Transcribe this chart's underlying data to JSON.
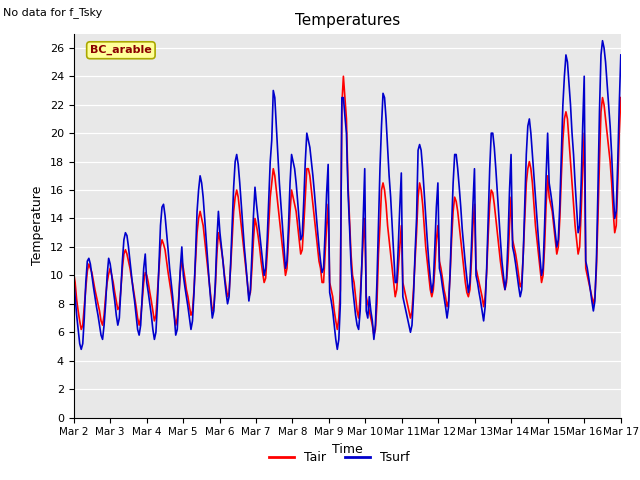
{
  "title": "Temperatures",
  "xlabel": "Time",
  "ylabel": "Temperature",
  "note": "No data for f_Tsky",
  "legend_label": "BC_arable",
  "ylim": [
    0,
    27
  ],
  "yticks": [
    0,
    2,
    4,
    6,
    8,
    10,
    12,
    14,
    16,
    18,
    20,
    22,
    24,
    26
  ],
  "xtick_labels": [
    "Mar 2",
    "Mar 3",
    "Mar 4",
    "Mar 5",
    "Mar 6",
    "Mar 7",
    "Mar 8",
    "Mar 9",
    "Mar 10",
    "Mar 11",
    "Mar 12",
    "Mar 13",
    "Mar 14",
    "Mar 15",
    "Mar 16",
    "Mar 17"
  ],
  "bg_color": "#e8e8e8",
  "tair_color": "#ff0000",
  "tsurf_color": "#0000cc",
  "legend_box_color": "#ffff99",
  "legend_box_edge": "#aaa800",
  "legend_text_color": "#8b0000",
  "line_width": 1.2,
  "n_days": 15,
  "points_per_day": 24,
  "tair_data": [
    10.2,
    9.5,
    8.3,
    7.5,
    6.8,
    6.2,
    6.5,
    7.8,
    9.1,
    10.3,
    10.8,
    10.5,
    10.2,
    9.6,
    9.0,
    8.5,
    8.0,
    7.5,
    6.8,
    6.5,
    7.2,
    8.5,
    9.5,
    10.1,
    10.5,
    10.0,
    9.5,
    8.8,
    8.2,
    7.6,
    7.8,
    9.0,
    10.5,
    11.5,
    11.8,
    11.5,
    11.0,
    10.5,
    9.8,
    9.2,
    8.5,
    7.8,
    7.0,
    6.5,
    7.0,
    8.2,
    9.5,
    10.2,
    10.0,
    9.5,
    8.8,
    8.2,
    7.5,
    6.8,
    7.2,
    8.8,
    10.5,
    12.0,
    12.5,
    12.2,
    11.8,
    11.0,
    10.2,
    9.5,
    8.8,
    8.0,
    7.2,
    6.5,
    7.0,
    8.5,
    10.2,
    11.0,
    10.5,
    9.8,
    9.0,
    8.5,
    7.8,
    7.2,
    7.5,
    9.0,
    11.0,
    13.0,
    14.0,
    14.5,
    14.0,
    13.5,
    12.5,
    11.5,
    10.5,
    9.5,
    8.5,
    7.5,
    7.8,
    9.2,
    11.5,
    13.0,
    12.5,
    11.8,
    11.0,
    10.0,
    9.2,
    8.5,
    8.8,
    10.5,
    12.5,
    14.5,
    15.5,
    16.0,
    15.5,
    14.5,
    13.5,
    12.5,
    11.5,
    10.5,
    9.5,
    8.5,
    8.8,
    10.5,
    12.5,
    14.0,
    13.5,
    12.8,
    12.0,
    11.0,
    10.2,
    9.5,
    9.8,
    11.5,
    13.5,
    15.5,
    16.5,
    17.5,
    17.0,
    16.0,
    15.0,
    14.0,
    13.0,
    12.0,
    11.0,
    10.0,
    10.5,
    12.5,
    14.5,
    16.0,
    15.5,
    15.0,
    14.5,
    13.5,
    12.5,
    11.5,
    11.8,
    13.5,
    15.5,
    17.5,
    17.5,
    17.0,
    16.0,
    15.0,
    14.0,
    13.0,
    12.0,
    11.0,
    10.5,
    9.5,
    9.5,
    11.5,
    13.5,
    15.0,
    9.5,
    9.0,
    8.5,
    7.5,
    6.8,
    6.2,
    7.0,
    9.0,
    22.0,
    24.0,
    22.5,
    21.0,
    16.5,
    14.0,
    11.5,
    10.0,
    9.5,
    8.5,
    7.5,
    7.0,
    8.5,
    10.5,
    12.5,
    14.0,
    8.5,
    8.0,
    7.5,
    7.0,
    6.5,
    5.8,
    6.2,
    8.0,
    11.5,
    13.5,
    16.0,
    16.5,
    16.0,
    15.0,
    13.5,
    12.5,
    11.5,
    10.5,
    9.5,
    8.5,
    9.0,
    10.5,
    12.0,
    13.5,
    9.5,
    9.0,
    8.5,
    8.0,
    7.5,
    7.0,
    7.5,
    9.0,
    11.0,
    13.0,
    15.5,
    16.5,
    16.0,
    15.0,
    13.5,
    12.0,
    11.0,
    10.0,
    9.0,
    8.5,
    9.0,
    10.5,
    12.5,
    13.5,
    11.0,
    10.5,
    9.8,
    9.0,
    8.5,
    7.8,
    8.2,
    10.0,
    12.5,
    14.5,
    15.5,
    15.2,
    14.5,
    13.5,
    12.5,
    11.5,
    10.5,
    9.5,
    8.8,
    8.5,
    9.0,
    11.0,
    13.5,
    15.0,
    10.5,
    10.0,
    9.5,
    9.0,
    8.5,
    7.8,
    8.5,
    10.2,
    12.8,
    15.0,
    16.0,
    15.8,
    15.0,
    14.0,
    13.0,
    12.0,
    11.0,
    10.2,
    9.5,
    9.0,
    9.5,
    11.0,
    13.5,
    15.5,
    12.5,
    12.0,
    11.5,
    10.8,
    10.0,
    9.2,
    9.5,
    11.5,
    14.0,
    16.5,
    17.5,
    18.0,
    17.5,
    16.5,
    15.0,
    13.5,
    12.5,
    11.5,
    10.5,
    9.5,
    10.0,
    12.0,
    15.0,
    17.0,
    15.5,
    15.0,
    14.5,
    13.5,
    12.5,
    11.5,
    12.0,
    14.0,
    17.0,
    19.5,
    21.0,
    21.5,
    21.0,
    19.5,
    18.0,
    16.5,
    15.0,
    13.5,
    12.5,
    11.5,
    12.0,
    14.5,
    17.5,
    20.0,
    10.5,
    10.0,
    9.5,
    9.0,
    8.5,
    8.0,
    8.5,
    10.5,
    14.0,
    18.0,
    21.5,
    22.5,
    22.0,
    21.0,
    20.0,
    19.0,
    18.0,
    16.5,
    14.5,
    13.0,
    13.5,
    16.5,
    20.0,
    22.5
  ],
  "tsurf_data": [
    9.8,
    8.5,
    7.2,
    6.2,
    5.2,
    4.8,
    5.2,
    7.0,
    9.5,
    11.0,
    11.2,
    10.8,
    10.0,
    9.2,
    8.5,
    7.8,
    7.2,
    6.5,
    5.8,
    5.5,
    6.5,
    8.0,
    10.0,
    11.2,
    10.8,
    10.0,
    9.0,
    8.2,
    7.2,
    6.5,
    7.0,
    9.0,
    11.0,
    12.5,
    13.0,
    12.8,
    12.0,
    11.0,
    10.0,
    9.0,
    8.2,
    7.2,
    6.2,
    5.8,
    6.5,
    8.5,
    10.5,
    11.5,
    9.5,
    8.8,
    8.0,
    7.2,
    6.2,
    5.5,
    6.0,
    8.0,
    10.8,
    13.5,
    14.8,
    15.0,
    14.2,
    13.0,
    11.8,
    10.5,
    9.5,
    8.5,
    7.2,
    5.8,
    6.2,
    8.2,
    10.5,
    12.0,
    10.0,
    9.2,
    8.5,
    7.8,
    7.0,
    6.2,
    6.8,
    8.8,
    11.5,
    14.5,
    16.0,
    17.0,
    16.5,
    15.5,
    14.0,
    12.5,
    11.0,
    9.5,
    8.2,
    7.0,
    7.5,
    9.5,
    12.5,
    14.5,
    13.0,
    12.0,
    11.0,
    9.8,
    8.8,
    8.0,
    8.5,
    10.8,
    13.5,
    16.2,
    18.0,
    18.5,
    17.8,
    16.5,
    15.0,
    13.5,
    12.0,
    10.8,
    9.5,
    8.2,
    9.0,
    11.5,
    14.2,
    16.2,
    15.0,
    14.0,
    13.0,
    12.0,
    11.0,
    10.0,
    10.5,
    12.5,
    15.2,
    18.0,
    19.5,
    23.0,
    22.5,
    20.5,
    18.5,
    16.5,
    15.0,
    13.5,
    12.0,
    10.5,
    11.0,
    13.5,
    16.5,
    18.5,
    18.0,
    17.5,
    16.5,
    15.2,
    13.8,
    12.5,
    12.8,
    15.2,
    18.0,
    20.0,
    19.5,
    19.0,
    18.0,
    17.0,
    15.8,
    14.5,
    13.2,
    12.0,
    11.0,
    10.2,
    10.5,
    13.0,
    15.8,
    17.8,
    8.8,
    8.2,
    7.5,
    6.5,
    5.5,
    4.8,
    5.5,
    8.0,
    22.5,
    22.5,
    21.2,
    20.0,
    16.0,
    13.5,
    10.8,
    9.2,
    8.2,
    7.2,
    6.5,
    6.2,
    7.5,
    10.5,
    14.0,
    17.5,
    7.5,
    7.0,
    8.5,
    7.5,
    6.8,
    5.5,
    6.5,
    9.5,
    13.5,
    17.5,
    20.5,
    22.8,
    22.5,
    21.0,
    19.0,
    17.0,
    15.5,
    13.5,
    11.5,
    9.5,
    9.5,
    12.0,
    14.8,
    17.2,
    8.5,
    8.0,
    7.5,
    7.0,
    6.5,
    6.0,
    6.5,
    8.5,
    11.5,
    14.0,
    18.8,
    19.2,
    18.8,
    17.5,
    15.8,
    14.0,
    12.5,
    11.0,
    9.8,
    8.8,
    9.5,
    12.0,
    14.8,
    16.5,
    10.5,
    10.0,
    9.2,
    8.5,
    7.8,
    7.0,
    7.8,
    10.2,
    13.5,
    16.5,
    18.5,
    18.5,
    17.5,
    16.2,
    14.8,
    13.2,
    12.0,
    10.8,
    9.8,
    8.8,
    9.5,
    12.0,
    15.0,
    17.5,
    10.0,
    9.5,
    8.8,
    8.2,
    7.5,
    6.8,
    7.8,
    10.5,
    14.0,
    17.5,
    20.0,
    20.0,
    19.0,
    17.5,
    15.8,
    14.0,
    12.5,
    11.0,
    10.0,
    9.0,
    9.8,
    12.5,
    16.0,
    18.5,
    12.0,
    11.5,
    10.8,
    10.0,
    9.2,
    8.5,
    9.0,
    11.5,
    15.0,
    18.5,
    20.5,
    21.0,
    20.0,
    18.5,
    17.0,
    15.5,
    14.0,
    12.5,
    11.2,
    10.0,
    10.5,
    13.5,
    17.0,
    20.0,
    16.5,
    15.8,
    15.0,
    14.0,
    13.0,
    12.0,
    12.5,
    15.0,
    18.5,
    22.0,
    24.0,
    25.5,
    25.0,
    23.5,
    22.0,
    20.0,
    18.5,
    16.5,
    14.8,
    13.0,
    13.5,
    16.5,
    20.5,
    24.0,
    11.0,
    10.5,
    9.8,
    9.0,
    8.2,
    7.5,
    8.2,
    11.0,
    16.0,
    21.5,
    25.5,
    26.5,
    26.0,
    25.0,
    23.5,
    22.0,
    20.5,
    18.5,
    16.0,
    14.0,
    14.5,
    18.0,
    22.0,
    25.5
  ]
}
